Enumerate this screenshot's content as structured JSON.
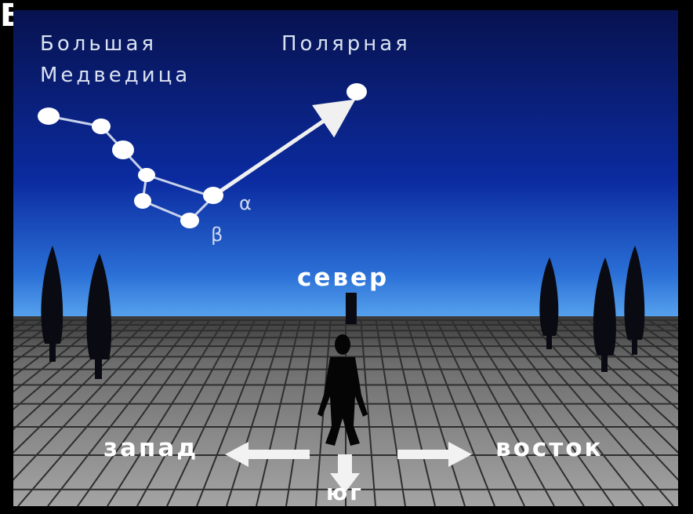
{
  "corner_glyph": "В",
  "constellation": {
    "name_line1": "Большая",
    "name_line2": "Медведица"
  },
  "polar_star": {
    "name": "Полярная"
  },
  "stars": {
    "alpha": "α",
    "beta": "β"
  },
  "directions": {
    "north": "север",
    "south": "юг",
    "west": "запад",
    "east": "восток"
  },
  "colors": {
    "sky_top": "#07124f",
    "sky_mid": "#0b2ba0",
    "sky_horizon": "#3d8fe6",
    "ground": "#8a8a8a",
    "star": "#ffffff",
    "arrow": "#f0f0f0"
  }
}
